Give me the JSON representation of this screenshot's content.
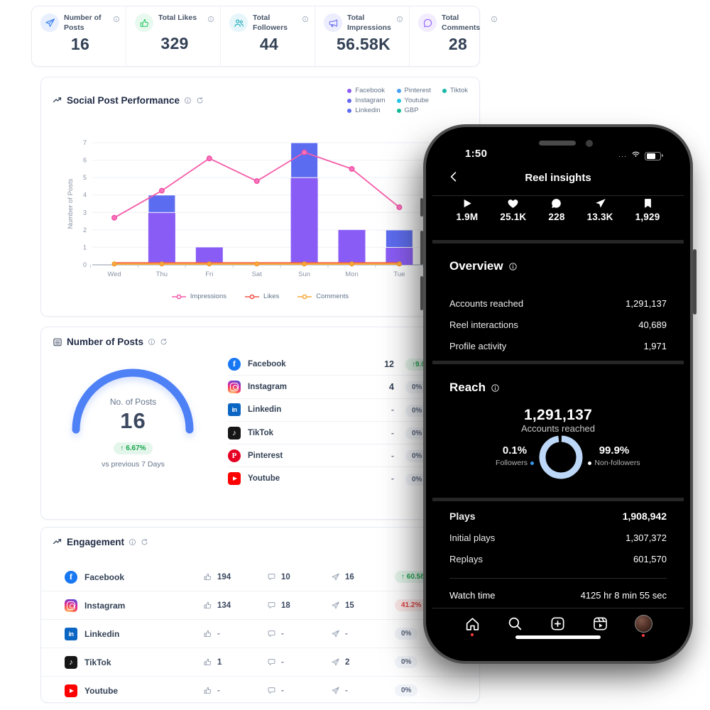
{
  "summary": {
    "items": [
      {
        "label": "Number of Posts",
        "value": "16",
        "icon": "send-icon",
        "color": "#3b82f6",
        "bg": "#e8effe"
      },
      {
        "label": "Total Likes",
        "value": "329",
        "icon": "thumbs-up-icon",
        "color": "#22c55e",
        "bg": "#e8f9ef"
      },
      {
        "label": "Total Followers",
        "value": "44",
        "icon": "followers-icon",
        "color": "#0ea5b7",
        "bg": "#e6f6fa"
      },
      {
        "label": "Total Impressions",
        "value": "56.58K",
        "icon": "megaphone-icon",
        "color": "#6366f1",
        "bg": "#ecedfe"
      },
      {
        "label": "Total Comments",
        "value": "28",
        "icon": "comment-icon",
        "color": "#8b5cf6",
        "bg": "#f2ecfe"
      }
    ]
  },
  "performance": {
    "title": "Social Post Performance",
    "legend": [
      {
        "label": "Facebook",
        "color": "#8b5cf6"
      },
      {
        "label": "Instagram",
        "color": "#6366f1"
      },
      {
        "label": "Linkedin",
        "color": "#5f6cf1"
      },
      {
        "label": "Pinterest",
        "color": "#47a0f4"
      },
      {
        "label": "Youtube",
        "color": "#24c3e8"
      },
      {
        "label": "GBP",
        "color": "#12b893"
      },
      {
        "label": "Tiktok",
        "color": "#14b8a6"
      }
    ],
    "series_legend": [
      {
        "label": "Impressions",
        "color": "#f45ca8"
      },
      {
        "label": "Likes",
        "color": "#f2574d"
      },
      {
        "label": "Comments",
        "color": "#f6a93b"
      }
    ]
  },
  "chart_data": {
    "type": "bar",
    "categories": [
      "Wed",
      "Thu",
      "Fri",
      "Sat",
      "Sun",
      "Mon",
      "Tue"
    ],
    "ylabel": "Number of Posts",
    "ylim": [
      0,
      7
    ],
    "grid": true,
    "series": [
      {
        "name": "Facebook",
        "type": "bar",
        "color": "#8a5cf6",
        "values": [
          0,
          3,
          1,
          0,
          5,
          2,
          1
        ]
      },
      {
        "name": "Instagram",
        "type": "bar",
        "color": "#5c6cf0",
        "values": [
          0,
          1,
          0,
          0,
          2,
          0,
          1
        ]
      },
      {
        "name": "Impressions",
        "type": "line",
        "color": "#f45ca8",
        "values": [
          2.7,
          4.25,
          6.1,
          4.8,
          6.45,
          5.5,
          3.3
        ]
      },
      {
        "name": "Likes",
        "type": "line",
        "color": "#f2574d",
        "values": [
          0.1,
          0.1,
          0.1,
          0.1,
          0.1,
          0.1,
          0.1
        ]
      },
      {
        "name": "Comments",
        "type": "line",
        "color": "#f6a93b",
        "values": [
          0.05,
          0.05,
          0.05,
          0.05,
          0.05,
          0.05,
          0.05
        ]
      }
    ]
  },
  "posts": {
    "title": "Number of Posts",
    "gauge": {
      "label": "No. of Posts",
      "value": "16",
      "change": "↑ 6.67%",
      "compare": "vs previous 7 Days"
    },
    "rows": [
      {
        "platform": "Facebook",
        "value": "12",
        "change": "↑9.0",
        "change_type": "up"
      },
      {
        "platform": "Instagram",
        "value": "4",
        "change": "0%",
        "change_type": "neutral"
      },
      {
        "platform": "Linkedin",
        "value": "-",
        "change": "0%",
        "change_type": "neutral"
      },
      {
        "platform": "TikTok",
        "value": "-",
        "change": "0%",
        "change_type": "neutral"
      },
      {
        "platform": "Pinterest",
        "value": "-",
        "change": "0%",
        "change_type": "neutral"
      },
      {
        "platform": "Youtube",
        "value": "-",
        "change": "0%",
        "change_type": "neutral"
      }
    ]
  },
  "engagement": {
    "title": "Engagement",
    "rows": [
      {
        "platform": "Facebook",
        "likes": "194",
        "comments": "10",
        "shares": "16",
        "change": "↑ 60.58%",
        "change_type": "up"
      },
      {
        "platform": "Instagram",
        "likes": "134",
        "comments": "18",
        "shares": "15",
        "change": "41.2% ↓",
        "change_type": "down"
      },
      {
        "platform": "Linkedin",
        "likes": "-",
        "comments": "-",
        "shares": "-",
        "change": "0%",
        "change_type": "neutral"
      },
      {
        "platform": "TikTok",
        "likes": "1",
        "comments": "-",
        "shares": "2",
        "change": "0%",
        "change_type": "neutral"
      },
      {
        "platform": "Youtube",
        "likes": "-",
        "comments": "-",
        "shares": "-",
        "change": "0%",
        "change_type": "neutral"
      }
    ]
  },
  "phone": {
    "status": {
      "time": "1:50",
      "signal": "···"
    },
    "nav": {
      "title": "Reel insights"
    },
    "stats": [
      {
        "icon": "play-icon",
        "value": "1.9M"
      },
      {
        "icon": "heart-icon",
        "value": "25.1K"
      },
      {
        "icon": "comment-bubble-icon",
        "value": "228"
      },
      {
        "icon": "share-icon",
        "value": "13.3K"
      },
      {
        "icon": "bookmark-icon",
        "value": "1,929"
      }
    ],
    "overview": {
      "title": "Overview",
      "rows": [
        {
          "label": "Accounts reached",
          "value": "1,291,137"
        },
        {
          "label": "Reel interactions",
          "value": "40,689"
        },
        {
          "label": "Profile activity",
          "value": "1,971"
        }
      ]
    },
    "reach": {
      "title": "Reach",
      "value": "1,291,137",
      "value_label": "Accounts reached",
      "followers_pct": "0.1%",
      "followers_label": "Followers",
      "nonfollowers_pct": "99.9%",
      "nonfollowers_label": "Non-followers",
      "ring_color": "#bcd7f7"
    },
    "plays": {
      "rows": [
        {
          "label": "Plays",
          "value": "1,908,942",
          "bold": true
        },
        {
          "label": "Initial plays",
          "value": "1,307,372",
          "bold": false
        },
        {
          "label": "Replays",
          "value": "601,570",
          "bold": false
        }
      ],
      "watch_label": "Watch time",
      "watch_value": "4125 hr 8 min 55 sec"
    }
  }
}
